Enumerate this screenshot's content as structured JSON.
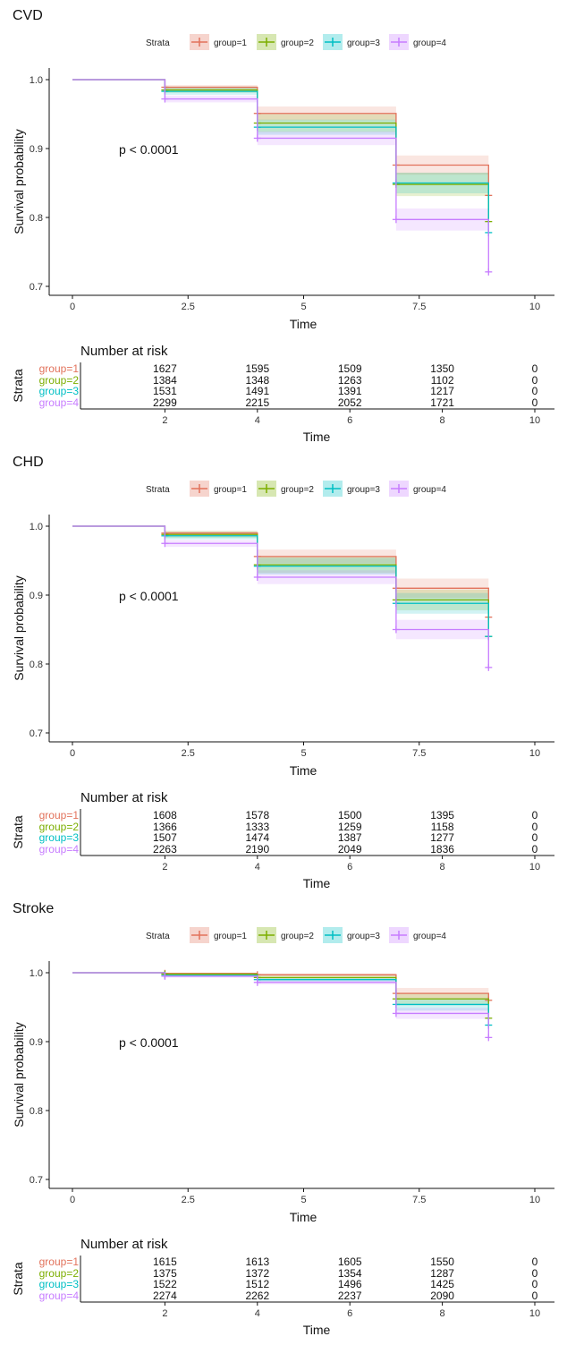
{
  "strata_label": "Strata",
  "legend_items": [
    "group=1",
    "group=2",
    "group=3",
    "group=4"
  ],
  "colors": {
    "group=1": "#E2725B",
    "group=2": "#7CAE00",
    "group=3": "#00BFC4",
    "group=4": "#C77CFF"
  },
  "chart_data": [
    {
      "type": "line",
      "title": "CVD",
      "xlabel": "Time",
      "ylabel": "Survival probability",
      "xlim": [
        0,
        10
      ],
      "ylim": [
        0.7,
        1.0
      ],
      "xticks": [
        "0",
        "2.5",
        "5",
        "7.5",
        "10"
      ],
      "yticks": [
        "0.7",
        "0.8",
        "0.9",
        "1.0"
      ],
      "pvalue": "p < 0.0001",
      "censor_times": [
        2,
        4,
        7,
        9
      ],
      "series": [
        {
          "name": "group=1",
          "times": [
            0,
            2,
            4,
            7,
            9
          ],
          "values": [
            1.0,
            0.989,
            0.951,
            0.876,
            0.832
          ],
          "ci": [
            [
              0.986,
              0.992
            ],
            [
              0.941,
              0.961
            ],
            [
              0.862,
              0.89
            ]
          ]
        },
        {
          "name": "group=2",
          "times": [
            0,
            2,
            4,
            7,
            9
          ],
          "values": [
            1.0,
            0.985,
            0.937,
            0.848,
            0.794
          ],
          "ci": [
            [
              0.981,
              0.99
            ],
            [
              0.924,
              0.95
            ],
            [
              0.831,
              0.865
            ]
          ]
        },
        {
          "name": "group=3",
          "times": [
            0,
            2,
            4,
            7,
            9
          ],
          "values": [
            1.0,
            0.983,
            0.931,
            0.85,
            0.778
          ],
          "ci": [
            [
              0.978,
              0.988
            ],
            [
              0.92,
              0.942
            ],
            [
              0.835,
              0.865
            ]
          ]
        },
        {
          "name": "group=4",
          "times": [
            0,
            2,
            4,
            7,
            9
          ],
          "values": [
            1.0,
            0.972,
            0.915,
            0.797,
            0.721
          ],
          "ci": [
            [
              0.967,
              0.977
            ],
            [
              0.905,
              0.925
            ],
            [
              0.781,
              0.813
            ]
          ]
        }
      ],
      "risk_table": {
        "title": "Number at risk",
        "ylabel": "Strata",
        "xlabel": "Time",
        "times": [
          2,
          4,
          6,
          8,
          10
        ],
        "rows": [
          {
            "label": "group=1",
            "values": [
              "1627",
              "1595",
              "1509",
              "1350",
              "0"
            ]
          },
          {
            "label": "group=2",
            "values": [
              "1384",
              "1348",
              "1263",
              "1102",
              "0"
            ]
          },
          {
            "label": "group=3",
            "values": [
              "1531",
              "1491",
              "1391",
              "1217",
              "0"
            ]
          },
          {
            "label": "group=4",
            "values": [
              "2299",
              "2215",
              "2052",
              "1721",
              "0"
            ]
          }
        ],
        "xticks": [
          "2",
          "4",
          "6",
          "8",
          "10"
        ]
      }
    },
    {
      "type": "line",
      "title": "CHD",
      "xlabel": "Time",
      "ylabel": "Survival probability",
      "xlim": [
        0,
        10
      ],
      "ylim": [
        0.7,
        1.0
      ],
      "xticks": [
        "0",
        "2.5",
        "5",
        "7.5",
        "10"
      ],
      "yticks": [
        "0.7",
        "0.8",
        "0.9",
        "1.0"
      ],
      "pvalue": "p < 0.0001",
      "censor_times": [
        2,
        4,
        7,
        9
      ],
      "series": [
        {
          "name": "group=1",
          "times": [
            0,
            2,
            4,
            7,
            9
          ],
          "values": [
            1.0,
            0.99,
            0.956,
            0.91,
            0.868
          ],
          "ci": [
            [
              0.987,
              0.993
            ],
            [
              0.946,
              0.966
            ],
            [
              0.896,
              0.924
            ]
          ]
        },
        {
          "name": "group=2",
          "times": [
            0,
            2,
            4,
            7,
            9
          ],
          "values": [
            1.0,
            0.988,
            0.944,
            0.893,
            0.84
          ],
          "ci": [
            [
              0.983,
              0.993
            ],
            [
              0.932,
              0.956
            ],
            [
              0.878,
              0.908
            ]
          ]
        },
        {
          "name": "group=3",
          "times": [
            0,
            2,
            4,
            7,
            9
          ],
          "values": [
            1.0,
            0.986,
            0.942,
            0.888,
            0.84
          ],
          "ci": [
            [
              0.981,
              0.991
            ],
            [
              0.93,
              0.954
            ],
            [
              0.873,
              0.903
            ]
          ]
        },
        {
          "name": "group=4",
          "times": [
            0,
            2,
            4,
            7,
            9
          ],
          "values": [
            1.0,
            0.975,
            0.926,
            0.85,
            0.795
          ],
          "ci": [
            [
              0.97,
              0.98
            ],
            [
              0.916,
              0.936
            ],
            [
              0.836,
              0.864
            ]
          ]
        }
      ],
      "risk_table": {
        "title": "Number at risk",
        "ylabel": "Strata",
        "xlabel": "Time",
        "times": [
          2,
          4,
          6,
          8,
          10
        ],
        "rows": [
          {
            "label": "group=1",
            "values": [
              "1608",
              "1578",
              "1500",
              "1395",
              "0"
            ]
          },
          {
            "label": "group=2",
            "values": [
              "1366",
              "1333",
              "1259",
              "1158",
              "0"
            ]
          },
          {
            "label": "group=3",
            "values": [
              "1507",
              "1474",
              "1387",
              "1277",
              "0"
            ]
          },
          {
            "label": "group=4",
            "values": [
              "2263",
              "2190",
              "2049",
              "1836",
              "0"
            ]
          }
        ],
        "xticks": [
          "2",
          "4",
          "6",
          "8",
          "10"
        ]
      }
    },
    {
      "type": "line",
      "title": "Stroke",
      "xlabel": "Time",
      "ylabel": "Survival probability",
      "xlim": [
        0,
        10
      ],
      "ylim": [
        0.7,
        1.0
      ],
      "xticks": [
        "0",
        "2.5",
        "5",
        "7.5",
        "10"
      ],
      "yticks": [
        "0.7",
        "0.8",
        "0.9",
        "1.0"
      ],
      "pvalue": "p < 0.0001",
      "censor_times": [
        2,
        4,
        7,
        9
      ],
      "series": [
        {
          "name": "group=1",
          "times": [
            0,
            2,
            4,
            7,
            9
          ],
          "values": [
            1.0,
            0.999,
            0.997,
            0.97,
            0.96
          ],
          "ci": [
            [
              0.998,
              1.0
            ],
            [
              0.995,
              0.999
            ],
            [
              0.962,
              0.978
            ]
          ]
        },
        {
          "name": "group=2",
          "times": [
            0,
            2,
            4,
            7,
            9
          ],
          "values": [
            1.0,
            0.998,
            0.993,
            0.962,
            0.934
          ],
          "ci": [
            [
              0.996,
              1.0
            ],
            [
              0.99,
              0.996
            ],
            [
              0.953,
              0.971
            ]
          ]
        },
        {
          "name": "group=3",
          "times": [
            0,
            2,
            4,
            7,
            9
          ],
          "values": [
            1.0,
            0.996,
            0.99,
            0.954,
            0.924
          ],
          "ci": [
            [
              0.994,
              0.998
            ],
            [
              0.987,
              0.993
            ],
            [
              0.945,
              0.963
            ]
          ]
        },
        {
          "name": "group=4",
          "times": [
            0,
            2,
            4,
            7,
            9
          ],
          "values": [
            1.0,
            0.995,
            0.986,
            0.941,
            0.906
          ],
          "ci": [
            [
              0.993,
              0.997
            ],
            [
              0.983,
              0.989
            ],
            [
              0.933,
              0.949
            ]
          ]
        }
      ],
      "risk_table": {
        "title": "Number at risk",
        "ylabel": "Strata",
        "xlabel": "Time",
        "times": [
          2,
          4,
          6,
          8,
          10
        ],
        "rows": [
          {
            "label": "group=1",
            "values": [
              "1615",
              "1613",
              "1605",
              "1550",
              "0"
            ]
          },
          {
            "label": "group=2",
            "values": [
              "1375",
              "1372",
              "1354",
              "1287",
              "0"
            ]
          },
          {
            "label": "group=3",
            "values": [
              "1522",
              "1512",
              "1496",
              "1425",
              "0"
            ]
          },
          {
            "label": "group=4",
            "values": [
              "2274",
              "2262",
              "2237",
              "2090",
              "0"
            ]
          }
        ],
        "xticks": [
          "2",
          "4",
          "6",
          "8",
          "10"
        ]
      }
    }
  ]
}
